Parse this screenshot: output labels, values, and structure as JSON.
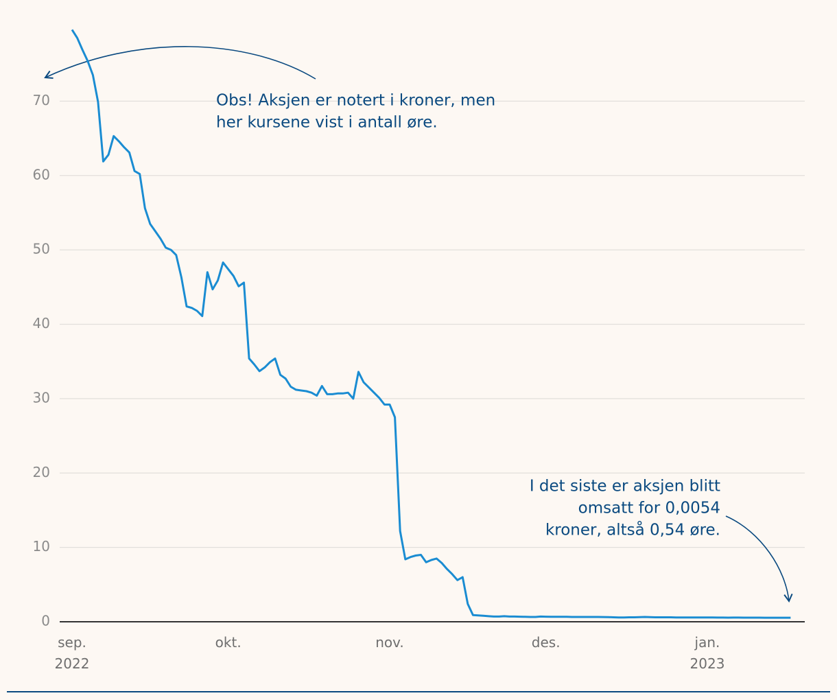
{
  "chart_data": {
    "type": "line",
    "categories": [
      [
        "sep.",
        "2022"
      ],
      null,
      null,
      null,
      null,
      null,
      null,
      null,
      null,
      null,
      null,
      null,
      null,
      null,
      null,
      null,
      null,
      null,
      null,
      null,
      null,
      null,
      null,
      null,
      null,
      null,
      null,
      null,
      null,
      null,
      [
        "okt."
      ],
      null,
      null,
      null,
      null,
      null,
      null,
      null,
      null,
      null,
      null,
      null,
      null,
      null,
      null,
      null,
      null,
      null,
      null,
      null,
      null,
      null,
      null,
      null,
      null,
      null,
      null,
      null,
      null,
      null,
      null,
      [
        "nov."
      ],
      null,
      null,
      null,
      null,
      null,
      null,
      null,
      null,
      null,
      null,
      null,
      null,
      null,
      null,
      null,
      null,
      null,
      null,
      null,
      null,
      null,
      null,
      null,
      null,
      null,
      null,
      null,
      null,
      null,
      [
        "des."
      ],
      null,
      null,
      null,
      null,
      null,
      null,
      null,
      null,
      null,
      null,
      null,
      null,
      null,
      null,
      null,
      null,
      null,
      null,
      null,
      null,
      null,
      null,
      null,
      null,
      null,
      null,
      null,
      null,
      null,
      null,
      [
        "jan.",
        "2023"
      ],
      null,
      null,
      null,
      null,
      null,
      null,
      null,
      null,
      null,
      null,
      null,
      null,
      null,
      null,
      null,
      null
    ],
    "series": [
      {
        "color": "#1a8cd2",
        "values": [
          79.6,
          78.5,
          76.9,
          75.4,
          73.5,
          69.9,
          61.9,
          62.8,
          65.3,
          64.6,
          63.8,
          63.1,
          60.6,
          60.2,
          55.6,
          53.5,
          52.5,
          51.5,
          50.3,
          50.0,
          49.3,
          46.3,
          42.4,
          42.2,
          41.8,
          41.1,
          47.0,
          44.7,
          45.9,
          48.3,
          47.4,
          46.5,
          45.1,
          45.6,
          35.4,
          34.6,
          33.7,
          34.2,
          34.9,
          35.4,
          33.2,
          32.7,
          31.6,
          31.2,
          31.1,
          31.0,
          30.8,
          30.4,
          31.7,
          30.6,
          30.6,
          30.7,
          30.7,
          30.8,
          30.0,
          33.6,
          32.2,
          31.5,
          30.8,
          30.1,
          29.2,
          29.2,
          27.5,
          12.2,
          8.4,
          8.7,
          8.9,
          9.0,
          8.0,
          8.3,
          8.5,
          7.9,
          7.1,
          6.4,
          5.6,
          6.0,
          2.4,
          0.9,
          0.85,
          0.8,
          0.75,
          0.7,
          0.7,
          0.75,
          0.7,
          0.7,
          0.68,
          0.66,
          0.65,
          0.65,
          0.7,
          0.68,
          0.67,
          0.67,
          0.66,
          0.66,
          0.65,
          0.65,
          0.65,
          0.65,
          0.65,
          0.65,
          0.64,
          0.63,
          0.6,
          0.58,
          0.58,
          0.6,
          0.6,
          0.62,
          0.65,
          0.63,
          0.6,
          0.6,
          0.6,
          0.6,
          0.58,
          0.58,
          0.57,
          0.58,
          0.58,
          0.57,
          0.57,
          0.57,
          0.56,
          0.56,
          0.55,
          0.56,
          0.56,
          0.55,
          0.55,
          0.55,
          0.55,
          0.54,
          0.54,
          0.54,
          0.54,
          0.54,
          0.54
        ]
      }
    ],
    "ylim": [
      0,
      80
    ],
    "yticks": [
      0,
      10,
      20,
      30,
      40,
      50,
      60,
      70
    ],
    "grid": true,
    "annotations": [
      {
        "lines": [
          "Obs! Aksjen er notert i kroner, men",
          "her kursene vist i antall øre."
        ]
      },
      {
        "lines": [
          "I det siste er aksjen blitt",
          "omsatt for 0,0054",
          "kroner, altså 0,54 øre."
        ]
      }
    ]
  }
}
